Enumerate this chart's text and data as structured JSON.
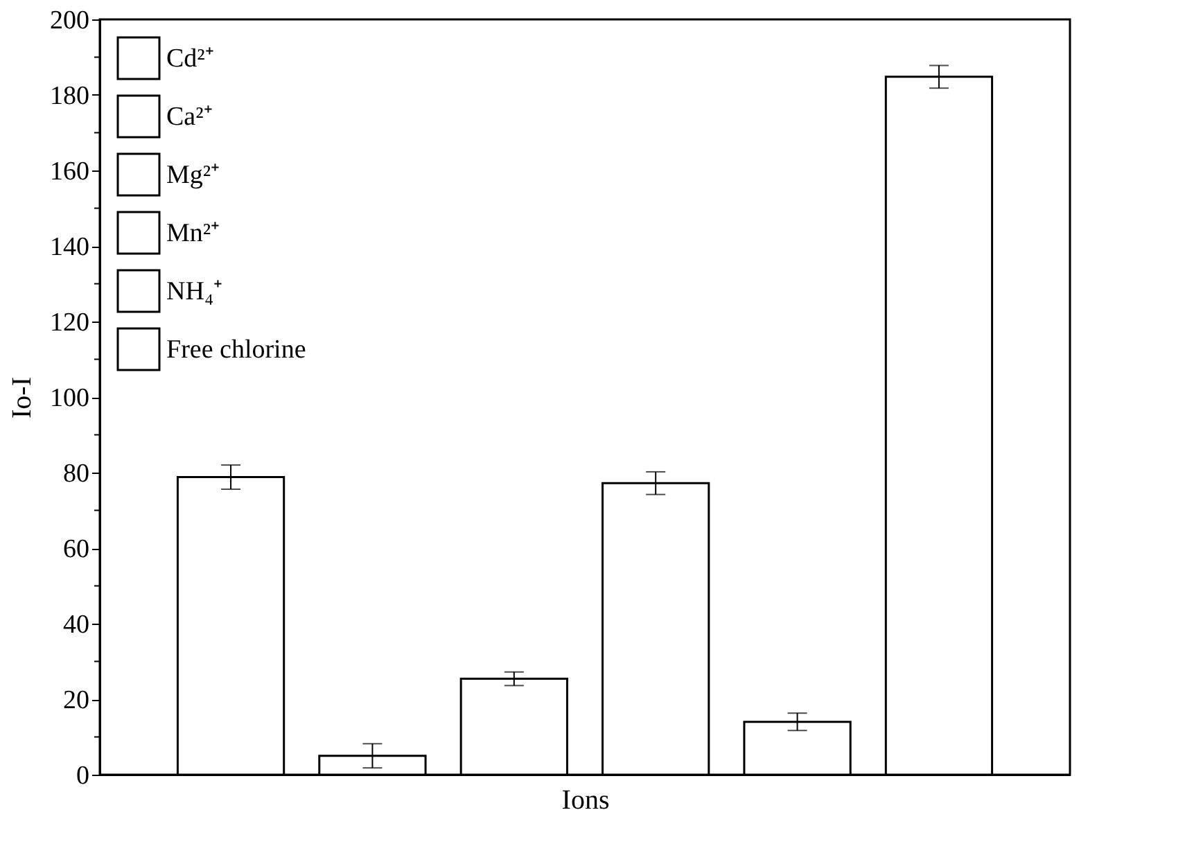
{
  "chart_data": {
    "type": "bar",
    "xlabel": "Ions",
    "ylabel": "Io-I",
    "categories": [
      null,
      null,
      null,
      null,
      null,
      null
    ],
    "series": [
      {
        "name": "Cd²⁺",
        "color": "#ffffff",
        "values": [
          78.8,
          null,
          null,
          null,
          null,
          null
        ],
        "errors": [
          3.2,
          null,
          null,
          null,
          null,
          null
        ]
      },
      {
        "name": "Ca²⁺",
        "color": "#ffffff",
        "values": [
          null,
          5,
          null,
          null,
          null,
          null
        ],
        "errors": [
          null,
          3.2,
          null,
          null,
          null,
          null
        ]
      },
      {
        "name": "Mg²⁺",
        "color": "#ffffff",
        "values": [
          null,
          null,
          25.4,
          null,
          null,
          null
        ],
        "errors": [
          null,
          null,
          1.8,
          null,
          null,
          null
        ]
      },
      {
        "name": "Mn²⁺",
        "color": "#ffffff",
        "values": [
          null,
          null,
          null,
          77.2,
          null,
          null
        ],
        "errors": [
          null,
          null,
          null,
          3,
          null,
          null
        ]
      },
      {
        "name": "NH₄⁺",
        "color": "#ffffff",
        "values": [
          null,
          null,
          null,
          null,
          14,
          null
        ],
        "errors": [
          null,
          null,
          null,
          null,
          2.3,
          null
        ]
      },
      {
        "name": "Free chlorine",
        "color": "#ffffff",
        "values": [
          null,
          null,
          null,
          null,
          null,
          184.8
        ],
        "errors": [
          null,
          null,
          null,
          null,
          null,
          3
        ]
      }
    ],
    "ylim": [
      0,
      200
    ],
    "yticks": [
      0,
      {
        "value": 10,
        "label": null
      },
      20,
      {
        "value": 30,
        "label": null
      },
      40,
      {
        "value": 50,
        "label": null
      },
      60,
      {
        "value": 70,
        "label": null
      },
      80,
      {
        "value": 90,
        "label": null
      },
      100,
      {
        "value": 110,
        "label": null
      },
      120,
      {
        "value": 130,
        "label": null
      },
      140,
      {
        "value": 150,
        "label": null
      },
      160,
      {
        "value": 170,
        "label": null
      },
      180,
      {
        "value": 190,
        "label": null
      },
      200
    ],
    "legend": "top left",
    "grid": false
  }
}
